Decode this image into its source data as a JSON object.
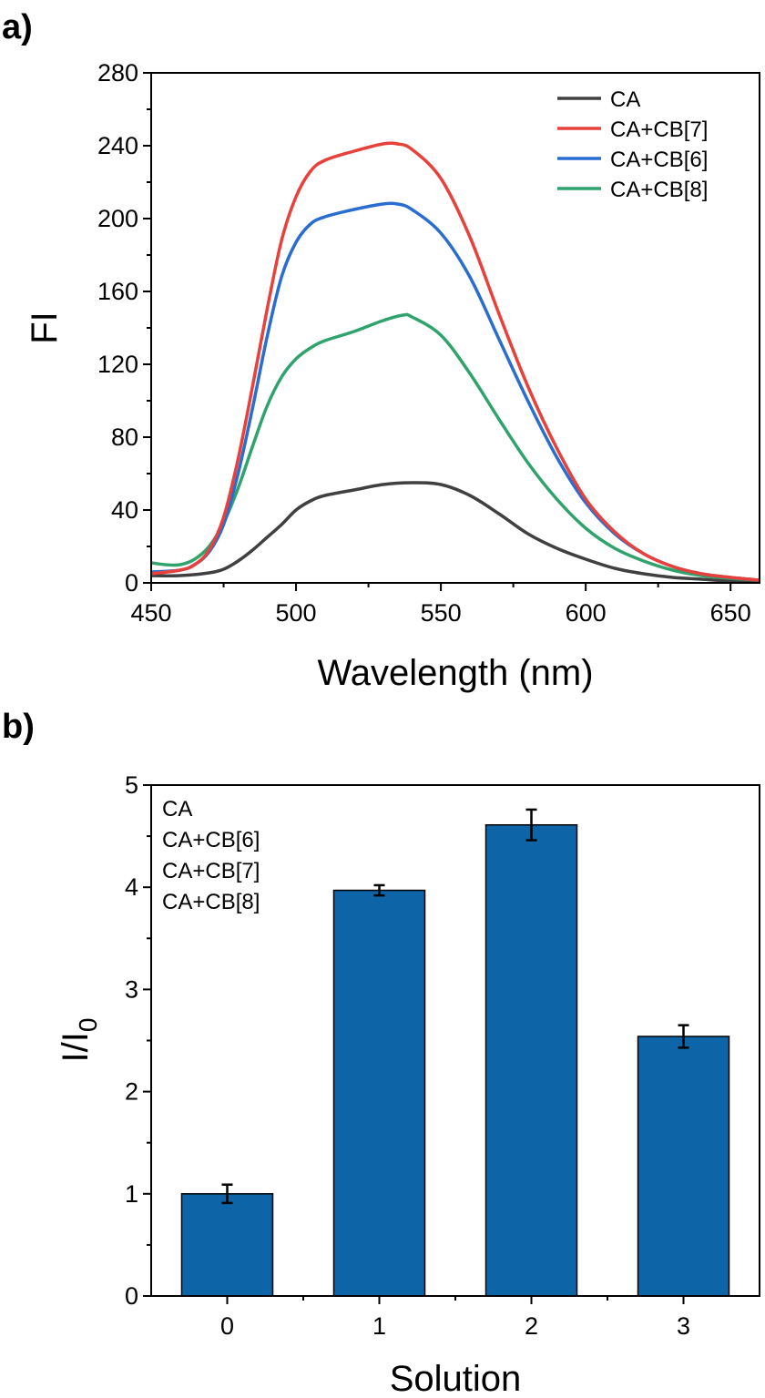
{
  "chart_data": [
    {
      "panel_label": "a)",
      "type": "line",
      "xlabel": "Wavelength (nm)",
      "ylabel": "FI",
      "xlim": [
        450,
        660
      ],
      "ylim": [
        0,
        280
      ],
      "xticks": [
        "450",
        "500",
        "550",
        "600",
        "650"
      ],
      "yticks": [
        "0",
        "40",
        "80",
        "120",
        "160",
        "200",
        "240",
        "280"
      ],
      "legend_position": "top-right",
      "series": [
        {
          "name": "CA",
          "color": "#404040",
          "x": [
            450,
            460,
            470,
            475,
            480,
            485,
            490,
            495,
            500,
            505,
            510,
            520,
            530,
            540,
            550,
            560,
            570,
            580,
            590,
            600,
            610,
            620,
            630,
            640,
            650,
            660
          ],
          "y": [
            4,
            4,
            5.5,
            7.5,
            12,
            18,
            25,
            32,
            40,
            45,
            48,
            51,
            54,
            55,
            54,
            48,
            38,
            27,
            19,
            13,
            8,
            5,
            3,
            2,
            1,
            0.5
          ]
        },
        {
          "name": "CA+CB[7]",
          "color": "#e8403a",
          "x": [
            450,
            460,
            465,
            470,
            475,
            480,
            485,
            490,
            495,
            500,
            505,
            510,
            520,
            530,
            535,
            540,
            550,
            560,
            570,
            580,
            590,
            600,
            610,
            620,
            630,
            640,
            650,
            660
          ],
          "y": [
            5,
            7,
            10,
            18,
            36,
            68,
            108,
            150,
            188,
            212,
            226,
            232,
            237,
            241,
            241,
            238,
            222,
            190,
            148,
            108,
            74,
            46,
            28,
            16,
            9,
            5,
            3,
            1.5
          ]
        },
        {
          "name": "CA+CB[6]",
          "color": "#2a6dd0",
          "x": [
            450,
            460,
            465,
            470,
            475,
            480,
            485,
            490,
            495,
            500,
            505,
            510,
            520,
            530,
            535,
            540,
            550,
            560,
            570,
            580,
            590,
            600,
            610,
            620,
            630,
            640,
            650,
            660
          ],
          "y": [
            6,
            7,
            10,
            17,
            32,
            60,
            96,
            135,
            168,
            187,
            197,
            201,
            205,
            208,
            208,
            205,
            192,
            168,
            134,
            100,
            69,
            44,
            27,
            16,
            9,
            5,
            3,
            1.5
          ]
        },
        {
          "name": "CA+CB[8]",
          "color": "#2fa36b",
          "x": [
            450,
            455,
            460,
            465,
            470,
            475,
            480,
            485,
            490,
            495,
            500,
            505,
            510,
            520,
            530,
            537,
            540,
            550,
            560,
            570,
            580,
            590,
            600,
            610,
            620,
            630,
            640,
            650,
            660
          ],
          "y": [
            11,
            10,
            10,
            13,
            20,
            33,
            52,
            75,
            97,
            113,
            123,
            129,
            133,
            138,
            144,
            147,
            146,
            136,
            115,
            90,
            66,
            46,
            30,
            19,
            12,
            7,
            4,
            2.5,
            1.5
          ]
        }
      ]
    },
    {
      "panel_label": "b)",
      "type": "bar",
      "xlabel": "Solution",
      "ylabel": "I/I",
      "ylabel_subscript": "0",
      "categories": [
        "0",
        "1",
        "2",
        "3"
      ],
      "values": [
        1.0,
        3.97,
        4.61,
        2.54
      ],
      "errors": [
        0.09,
        0.05,
        0.15,
        0.11
      ],
      "ylim": [
        0,
        5
      ],
      "yticks": [
        "0",
        "1",
        "2",
        "3",
        "4",
        "5"
      ],
      "bar_color": "#0d64a6",
      "legend_position": "top-left",
      "legend_entries": [
        "CA",
        "CA+CB[6]",
        "CA+CB[7]",
        "CA+CB[8]"
      ]
    }
  ]
}
